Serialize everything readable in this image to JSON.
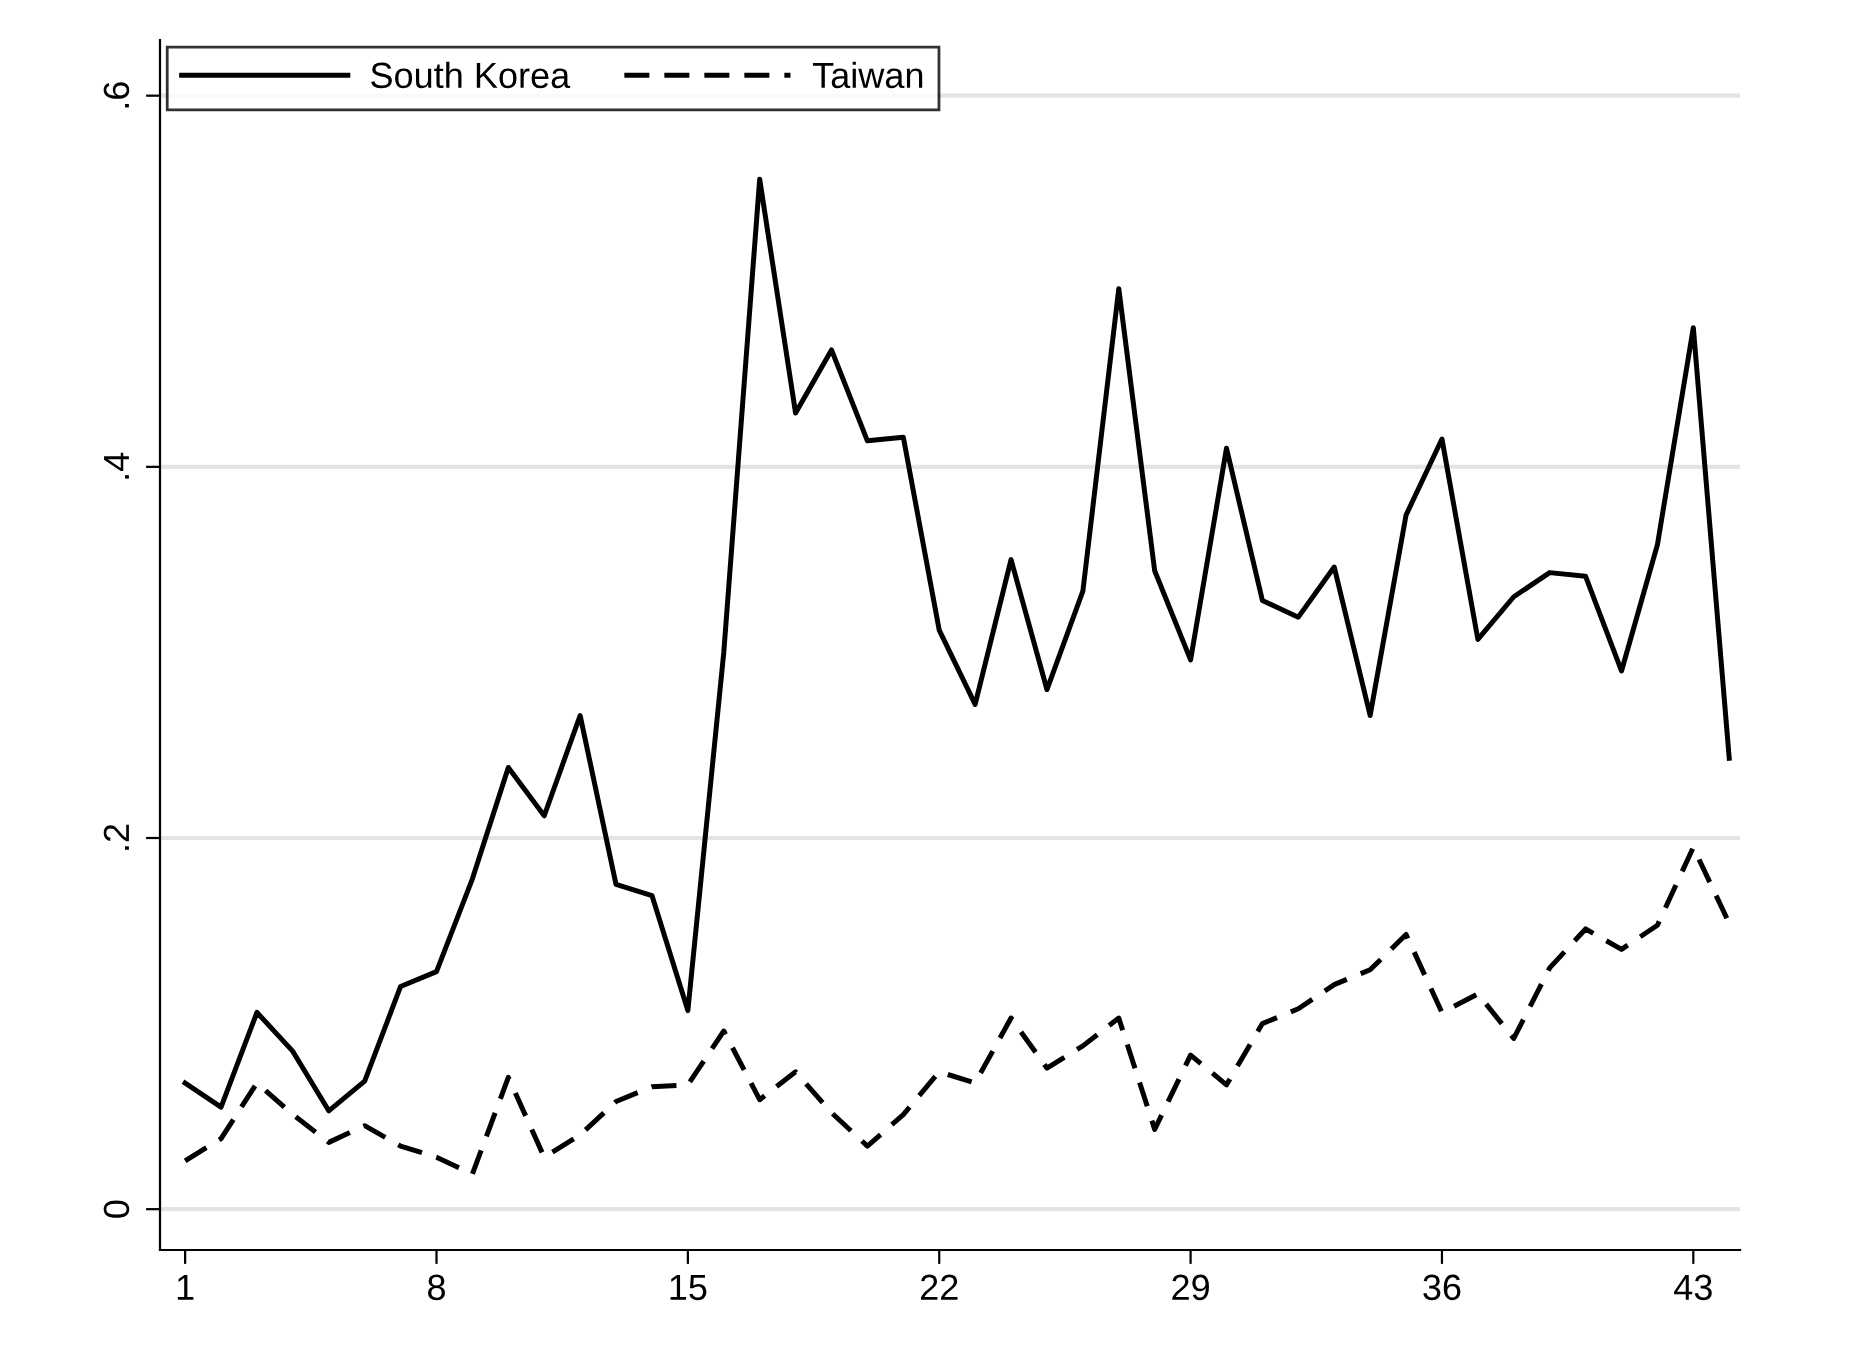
{
  "chart_data": {
    "type": "line",
    "x": [
      1,
      2,
      3,
      4,
      5,
      6,
      7,
      8,
      9,
      10,
      11,
      12,
      13,
      14,
      15,
      16,
      17,
      18,
      19,
      20,
      21,
      22,
      23,
      24,
      25,
      26,
      27,
      28,
      29,
      30,
      31,
      32,
      33,
      34,
      35,
      36,
      37,
      38,
      39,
      40,
      41,
      42,
      43,
      44
    ],
    "series": [
      {
        "name": "South Korea",
        "color": "#000000",
        "line_style": "solid",
        "values": [
          0.068,
          0.055,
          0.106,
          0.085,
          0.053,
          0.069,
          0.12,
          0.128,
          0.178,
          0.238,
          0.212,
          0.266,
          0.175,
          0.169,
          0.107,
          0.3,
          0.555,
          0.429,
          0.463,
          0.414,
          0.416,
          0.312,
          0.272,
          0.35,
          0.28,
          0.333,
          0.496,
          0.344,
          0.296,
          0.41,
          0.328,
          0.319,
          0.346,
          0.266,
          0.374,
          0.415,
          0.307,
          0.33,
          0.343,
          0.341,
          0.29,
          0.358,
          0.475,
          0.243
        ]
      },
      {
        "name": "Taiwan",
        "color": "#000000",
        "line_style": "dashed",
        "values": [
          0.026,
          0.038,
          0.068,
          0.051,
          0.036,
          0.045,
          0.034,
          0.028,
          0.019,
          0.071,
          0.028,
          0.04,
          0.058,
          0.066,
          0.067,
          0.096,
          0.059,
          0.074,
          0.052,
          0.034,
          0.051,
          0.074,
          0.068,
          0.103,
          0.076,
          0.088,
          0.103,
          0.043,
          0.083,
          0.067,
          0.1,
          0.108,
          0.121,
          0.129,
          0.148,
          0.106,
          0.116,
          0.092,
          0.13,
          0.151,
          0.14,
          0.153,
          0.195,
          0.154
        ]
      }
    ],
    "xlim": [
      0.3,
      44.3
    ],
    "xticks": [
      1,
      8,
      15,
      22,
      29,
      36,
      43
    ],
    "ylim": [
      -0.022,
      0.63
    ],
    "yticks": [
      0,
      {
        "value": 0.2,
        "label": ".2"
      },
      {
        "value": 0.4,
        "label": ".4"
      },
      {
        "value": 0.6,
        "label": ".6"
      }
    ],
    "grid": "y",
    "legend": "top left"
  }
}
